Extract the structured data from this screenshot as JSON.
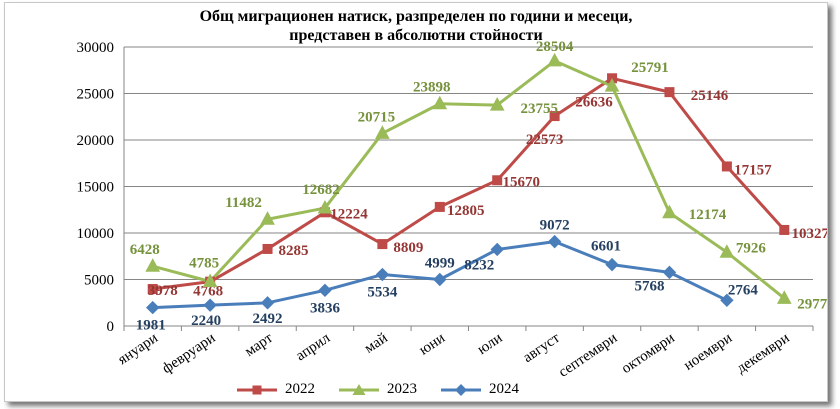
{
  "chart_data": {
    "type": "line",
    "title_line1": "Общ миграционен натиск, разпределен по години и  месеци,",
    "title_line2": "представен в абсолютни стойности",
    "categories": [
      "януари",
      "февруари",
      "март",
      "април",
      "май",
      "юни",
      "юли",
      "август",
      "септември",
      "октомври",
      "ноември",
      "декември"
    ],
    "ylim": [
      0,
      30000
    ],
    "yticks": [
      0,
      5000,
      10000,
      15000,
      20000,
      25000,
      30000
    ],
    "grid": true,
    "legend_position": "bottom",
    "series": [
      {
        "name": "2022",
        "color": "#be4b48",
        "marker": "square",
        "values": [
          3978,
          4768,
          8285,
          12224,
          8809,
          12805,
          15670,
          22573,
          26636,
          25146,
          17157,
          10327
        ]
      },
      {
        "name": "2023",
        "color": "#9bbb59",
        "marker": "triangle",
        "values": [
          6428,
          4785,
          11482,
          12682,
          20715,
          23898,
          23755,
          28504,
          25791,
          12174,
          7926,
          2977
        ]
      },
      {
        "name": "2024",
        "color": "#4a7eba",
        "marker": "diamond",
        "values": [
          1981,
          2240,
          2492,
          3836,
          5534,
          4999,
          8232,
          9072,
          6601,
          5768,
          2764,
          null
        ]
      }
    ],
    "label_colors": {
      "2022": "#943634",
      "2023": "#76923c",
      "2024": "#254061"
    }
  }
}
